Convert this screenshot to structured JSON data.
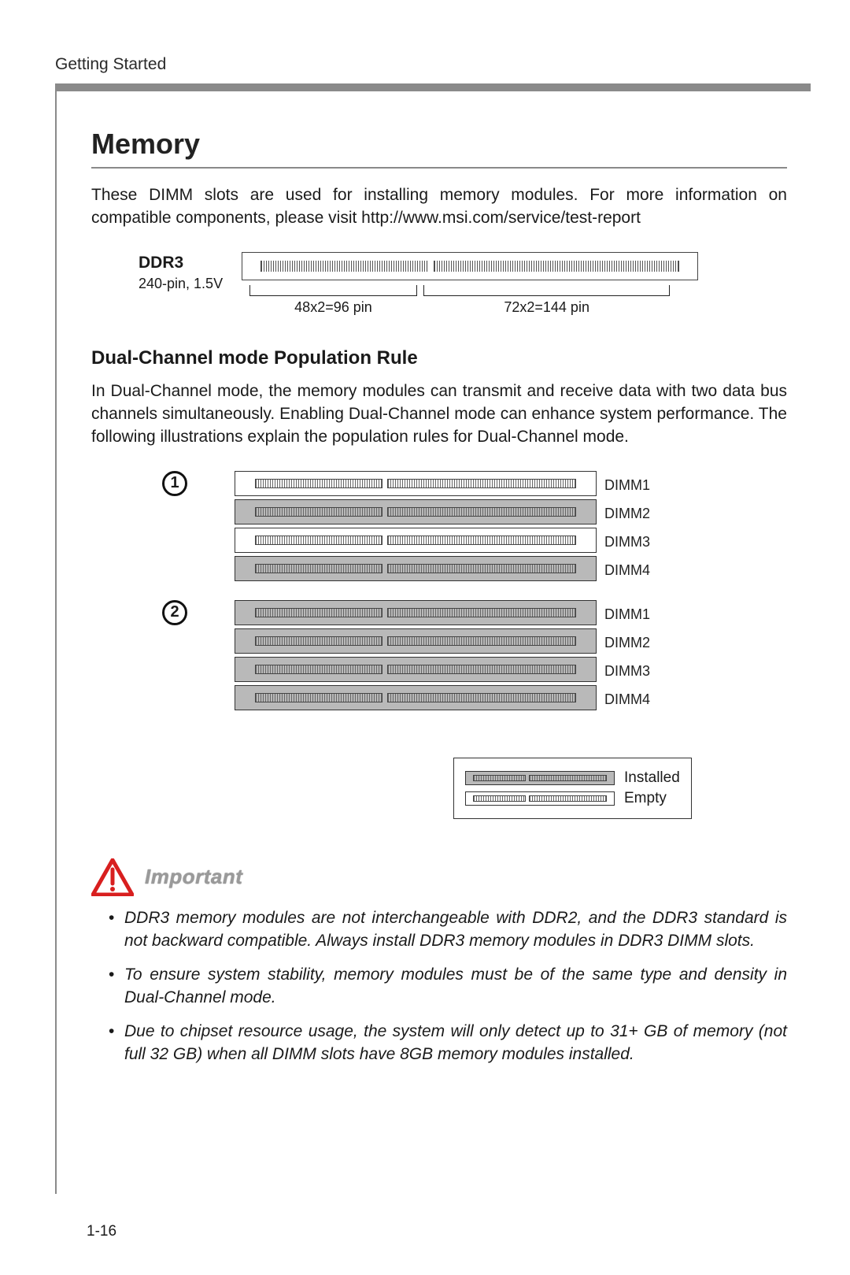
{
  "header_label": "Getting Started",
  "title": "Memory",
  "intro_text": "These DIMM slots are used for installing memory modules. For more information on compatible components, please visit http://www.msi.com/service/test-report",
  "ddr": {
    "main": "DDR3",
    "sub": "240-pin, 1.5V",
    "left_pin": "48x2=96 pin",
    "right_pin": "72x2=144 pin"
  },
  "subhead": "Dual-Channel mode Population Rule",
  "dualchannel_text": "In Dual-Channel mode, the memory modules can transmit and receive data with two data bus channels simultaneously. Enabling Dual-Channel mode can enhance system performance. The following illustrations explain the population rules for Dual-Channel mode.",
  "configs": [
    {
      "num": "1",
      "slots": [
        {
          "label": "DIMM1",
          "state": "empty"
        },
        {
          "label": "DIMM2",
          "state": "installed"
        },
        {
          "label": "DIMM3",
          "state": "empty"
        },
        {
          "label": "DIMM4",
          "state": "installed"
        }
      ]
    },
    {
      "num": "2",
      "slots": [
        {
          "label": "DIMM1",
          "state": "installed"
        },
        {
          "label": "DIMM2",
          "state": "installed"
        },
        {
          "label": "DIMM3",
          "state": "installed"
        },
        {
          "label": "DIMM4",
          "state": "installed"
        }
      ]
    }
  ],
  "legend": {
    "installed": "Installed",
    "empty": "Empty"
  },
  "important_label": "Important",
  "notes": [
    "DDR3 memory modules are not interchangeable with DDR2, and the DDR3 standard is not backward compatible. Always install DDR3 memory modules in DDR3 DIMM slots.",
    "To ensure system stability, memory modules must be of the same type and density in Dual-Channel mode.",
    "Due to chipset resource usage, the system will only detect up to 31+ GB of memory (not full 32 GB) when all DIMM slots have 8GB memory modules installed."
  ],
  "page_number": "1-16",
  "colors": {
    "rule": "#8a8a8a",
    "installed_bg": "#b9b9b9",
    "warn": "#d81f1f"
  }
}
